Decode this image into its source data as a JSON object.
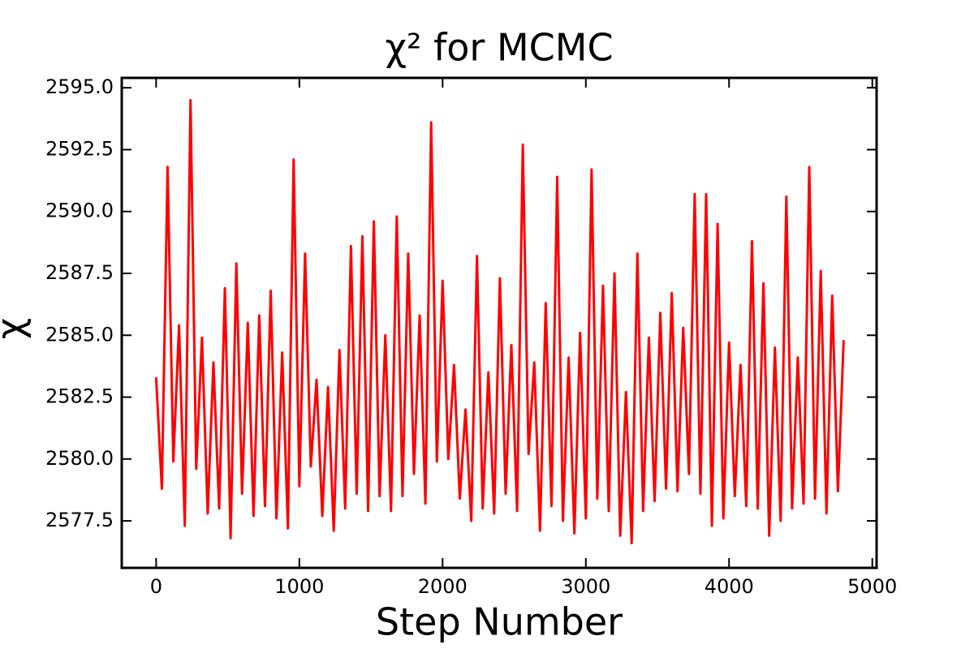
{
  "chart_data": {
    "type": "line",
    "title": "χ² for MCMC",
    "x_label": "Step Number",
    "y_label": "χ",
    "x": [
      0,
      40,
      80,
      120,
      160,
      200,
      240,
      280,
      320,
      360,
      400,
      440,
      480,
      520,
      560,
      600,
      640,
      680,
      720,
      760,
      800,
      840,
      880,
      920,
      960,
      1000,
      1040,
      1080,
      1120,
      1160,
      1200,
      1240,
      1280,
      1320,
      1360,
      1400,
      1440,
      1480,
      1520,
      1560,
      1600,
      1640,
      1680,
      1720,
      1760,
      1800,
      1840,
      1880,
      1920,
      1960,
      2000,
      2040,
      2080,
      2120,
      2160,
      2200,
      2240,
      2280,
      2320,
      2360,
      2400,
      2440,
      2480,
      2520,
      2560,
      2600,
      2640,
      2680,
      2720,
      2760,
      2800,
      2840,
      2880,
      2920,
      2960,
      3000,
      3040,
      3080,
      3120,
      3160,
      3200,
      3240,
      3280,
      3320,
      3360,
      3400,
      3440,
      3480,
      3520,
      3560,
      3600,
      3640,
      3680,
      3720,
      3760,
      3800,
      3840,
      3880,
      3920,
      3960,
      4000,
      4040,
      4080,
      4120,
      4160,
      4200,
      4240,
      4280,
      4320,
      4360,
      4400,
      4440,
      4480,
      4520,
      4560,
      4600,
      4640,
      4680,
      4720,
      4760,
      4800
    ],
    "values": [
      2583.3,
      2578.8,
      2591.8,
      2579.9,
      2585.4,
      2577.3,
      2594.5,
      2579.6,
      2584.9,
      2577.8,
      2583.9,
      2578.0,
      2586.9,
      2576.8,
      2587.9,
      2578.6,
      2585.5,
      2577.7,
      2585.8,
      2578.1,
      2586.8,
      2577.6,
      2584.3,
      2577.2,
      2592.1,
      2578.9,
      2588.3,
      2579.7,
      2583.2,
      2577.7,
      2582.9,
      2577.1,
      2584.4,
      2578.0,
      2588.6,
      2578.6,
      2589.0,
      2577.9,
      2589.6,
      2578.5,
      2585.0,
      2577.9,
      2589.8,
      2578.5,
      2588.3,
      2579.4,
      2585.8,
      2578.2,
      2593.6,
      2579.9,
      2587.2,
      2580.0,
      2583.8,
      2578.4,
      2582.0,
      2577.5,
      2588.2,
      2578.0,
      2583.5,
      2577.8,
      2587.3,
      2578.6,
      2584.6,
      2577.9,
      2592.7,
      2580.2,
      2583.9,
      2577.1,
      2586.3,
      2578.1,
      2591.4,
      2577.5,
      2584.1,
      2577.0,
      2585.1,
      2577.6,
      2591.7,
      2578.4,
      2587.0,
      2577.9,
      2587.5,
      2576.9,
      2582.7,
      2576.6,
      2588.3,
      2577.9,
      2584.9,
      2578.3,
      2585.9,
      2578.8,
      2586.7,
      2578.7,
      2585.3,
      2579.4,
      2590.7,
      2578.6,
      2590.7,
      2577.3,
      2589.5,
      2577.6,
      2584.7,
      2578.5,
      2583.8,
      2578.1,
      2588.8,
      2578.0,
      2587.1,
      2576.9,
      2584.5,
      2577.5,
      2590.6,
      2578.0,
      2584.1,
      2578.2,
      2591.8,
      2578.4,
      2587.6,
      2577.8,
      2586.6,
      2578.7,
      2584.8
    ],
    "color": "#ff0000",
    "xlim": [
      -240,
      5030
    ],
    "xticks": [
      0,
      1000,
      2000,
      3000,
      4000,
      5000
    ],
    "ylim": [
      2575.6,
      2595.4
    ],
    "yticks": [
      2577.5,
      {
        "value": 2580,
        "label": "2580.0"
      },
      2582.5,
      {
        "value": 2585,
        "label": "2585.0"
      },
      2587.5,
      {
        "value": 2590,
        "label": "2590.0"
      },
      2592.5,
      {
        "value": 2595,
        "label": "2595.0"
      }
    ]
  }
}
